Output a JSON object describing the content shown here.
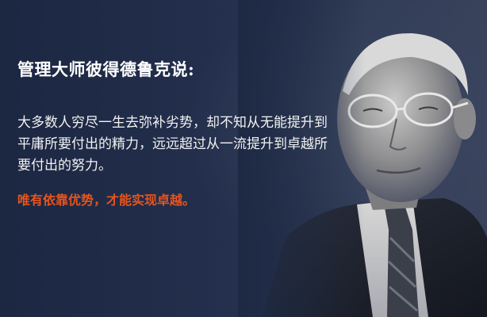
{
  "headline": "管理大师彼得德鲁克说:",
  "quote": "大多数人穷尽一生去弥补劣势，却不知从无能提升到平庸所要付出的精力，远远超过从一流提升到卓越所要付出的努力。",
  "conclusion": "唯有依靠优势，才能实现卓越。",
  "colors": {
    "background": "#1e2a44",
    "headline": "#ffffff",
    "quote": "#f2f2f2",
    "conclusion": "#e5541f"
  }
}
